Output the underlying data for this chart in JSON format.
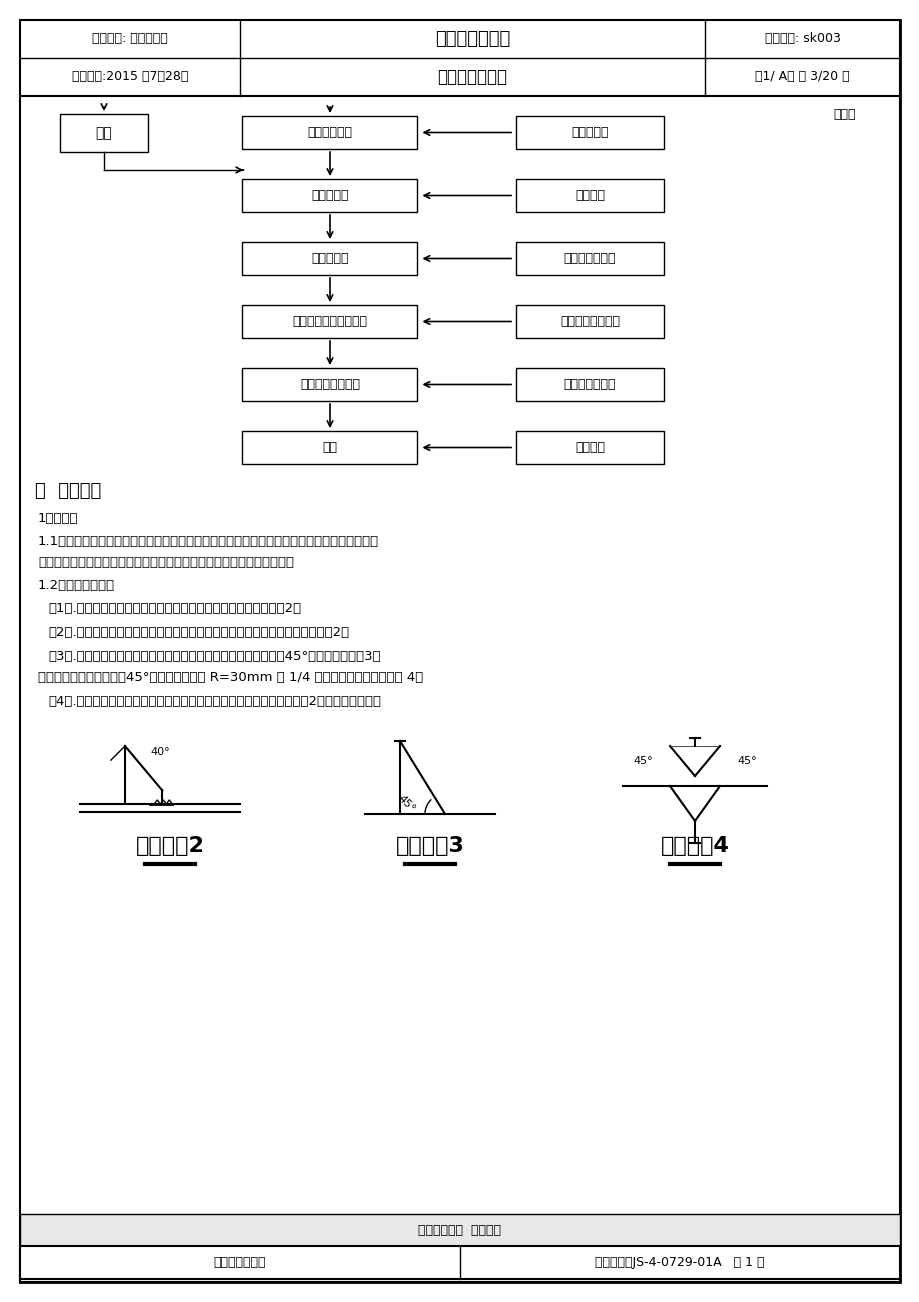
{
  "title1": "箱型柱制作步骤",
  "title2": "通用工艺通知书",
  "file_no": "文件编号: sk003",
  "version": "第1/ A版 第 3/20 页",
  "dept": "制订部门: 技术工艺科",
  "date": "制订日期:2015 年7月28日",
  "continue_text": "接上页",
  "flow_boxes_left": [
    "箱型柱端面铣",
    "装配零部件",
    "焊接零部件",
    "根据图纸要求抛丸除锈",
    "根据图纸要求涂装",
    "成品"
  ],
  "flow_boxes_right": [
    "垂直度检查",
    "尺寸检验",
    "焊缝、尺寸终检",
    "摩擦系数外观检查",
    "漆膜厚度外观检",
    "成品终检"
  ],
  "check_box": "检查",
  "section_title": "二  板材接料",
  "para1": "1坡口加工",
  "para2a": "1.1坡口的加工采用火焰切割机切割坡口，对切割后的坡口表面应进行清理，如坡口边缘上附有",
  "para2b": "其他氧化物时，也会影响焊接质量，因此应用角向磨光机予以清除干净；",
  "para3": "1.2坡口方式说明：",
  "para4": "（1）.箱型柱壁板与柱底板之间打单面坡口坡口做法参照坡口详图2。",
  "para5": "（2）.箱型柱内加劲板与箱型柱壁板焊接处打单面坡口，坡口形式参照坡口详图2。",
  "para6a": "（3）.柱与柱之间连接点处，上节柱翼板下端打单面坡口，角度为45°，参照坡口详图3，",
  "para6b": "腹板打双面坡口，角度为45°，端头处腹板开 R=30mm 的 1/4 圆鹄，坡口参照坡口详图 4。",
  "para7": "（4）.箱型柱两个不通长的翼缘板沿两个长边打单面坡口，参照坡口详图2施焊时加施焊板。",
  "detail2_label": "坡口详图2",
  "detail3_label": "坡口详图3",
  "detail4_label": "坡口详图4",
  "bottom_text": "文件非经许可  不准影印",
  "company": "第二钢结构公司",
  "form_no": "表单编号：JS-4-0729-01A   第 1 版",
  "bg_color": "#ffffff",
  "text_color": "#000000"
}
